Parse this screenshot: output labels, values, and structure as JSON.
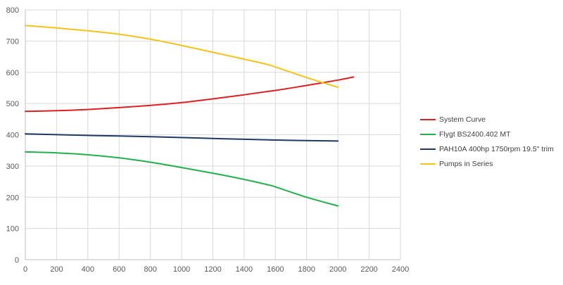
{
  "chart_data": {
    "type": "line",
    "title": "",
    "xlabel": "",
    "ylabel": "",
    "xlim": [
      0,
      2400
    ],
    "ylim": [
      0,
      800
    ],
    "x_ticks": [
      "0",
      "200",
      "400",
      "600",
      "800",
      "1000",
      "1200",
      "1400",
      "1600",
      "1800",
      "2000",
      "2200",
      "2400"
    ],
    "y_ticks": [
      "0",
      "100",
      "200",
      "300",
      "400",
      "500",
      "600",
      "700",
      "800"
    ],
    "grid": true,
    "legend_position": "right",
    "series": [
      {
        "name": "System Curve",
        "color": "#e02020",
        "points": [
          [
            0,
            475
          ],
          [
            200,
            477
          ],
          [
            400,
            481
          ],
          [
            600,
            487
          ],
          [
            800,
            494
          ],
          [
            1000,
            503
          ],
          [
            1200,
            515
          ],
          [
            1400,
            528
          ],
          [
            1600,
            542
          ],
          [
            1800,
            558
          ],
          [
            2000,
            575
          ],
          [
            2100,
            585
          ]
        ]
      },
      {
        "name": "Flygt BS2400.402 MT",
        "color": "#21b14c",
        "points": [
          [
            0,
            345
          ],
          [
            200,
            342
          ],
          [
            400,
            336
          ],
          [
            600,
            326
          ],
          [
            800,
            312
          ],
          [
            1000,
            295
          ],
          [
            1200,
            277
          ],
          [
            1400,
            257
          ],
          [
            1550,
            240
          ],
          [
            1600,
            233
          ],
          [
            1800,
            200
          ],
          [
            2000,
            172
          ]
        ]
      },
      {
        "name": "PAH10A 400hp 1750rpm 19.5\" trim",
        "color": "#1f3864",
        "points": [
          [
            0,
            403
          ],
          [
            400,
            398
          ],
          [
            800,
            394
          ],
          [
            1200,
            388
          ],
          [
            1600,
            383
          ],
          [
            2000,
            380
          ]
        ]
      },
      {
        "name": "Pumps in Series",
        "color": "#f5c218",
        "points": [
          [
            0,
            750
          ],
          [
            200,
            742
          ],
          [
            400,
            733
          ],
          [
            600,
            722
          ],
          [
            800,
            706
          ],
          [
            1000,
            686
          ],
          [
            1200,
            664
          ],
          [
            1400,
            642
          ],
          [
            1550,
            625
          ],
          [
            1600,
            617
          ],
          [
            1800,
            583
          ],
          [
            2000,
            552
          ]
        ]
      }
    ]
  }
}
